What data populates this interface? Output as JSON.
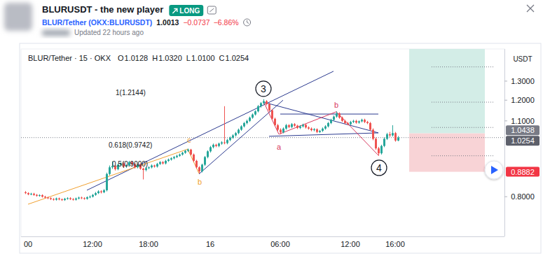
{
  "header": {
    "title": "BLURUSDT - the new player",
    "badge": "LONG",
    "symbol": "BLUR/Tether (OKX:BLURUSDT)",
    "price": "1.0013",
    "change": "−0.0737",
    "change_pct": "−6.86%",
    "updated": "Updated 22 hours ago"
  },
  "chart_data": {
    "type": "candlestick",
    "title": "BLUR/Tether · 15 · OKX",
    "ohlc": [
      {
        "label": "O",
        "value": "1.0128"
      },
      {
        "label": "H",
        "value": "1.0320"
      },
      {
        "label": "L",
        "value": "1.0100"
      },
      {
        "label": "C",
        "value": "1.0254"
      }
    ],
    "y_label": "USDT",
    "categories": [
      null,
      "00",
      null,
      null,
      null,
      null,
      null,
      null,
      null,
      null,
      null,
      null,
      null,
      null,
      null,
      null,
      null,
      null,
      null,
      null,
      null,
      null,
      null,
      null,
      "12:00",
      null,
      null,
      null,
      null,
      null,
      null,
      null,
      null,
      null,
      null,
      null,
      null,
      null,
      null,
      null,
      null,
      null,
      null,
      null,
      "18:00",
      null,
      null,
      null,
      null,
      null,
      null,
      null,
      null,
      null,
      null,
      null,
      null,
      null,
      null,
      null,
      null,
      null,
      null,
      null,
      null,
      null,
      "16",
      null,
      null,
      null,
      null,
      null,
      null,
      null,
      null,
      null,
      null,
      null,
      null,
      null,
      null,
      null,
      null,
      null,
      null,
      null,
      null,
      null,
      null,
      null,
      null,
      "06:00",
      null,
      null,
      null,
      null,
      null,
      null,
      null,
      null,
      null,
      null,
      null,
      null,
      null,
      null,
      null,
      null,
      null,
      null,
      null,
      null,
      null,
      null,
      null,
      null,
      "12:00",
      null,
      null,
      null,
      null,
      null,
      null,
      null,
      null,
      null,
      null,
      null,
      null,
      null,
      null,
      null,
      "16:00",
      null
    ],
    "series": [
      {
        "colors": [
          "#26a69a",
          "#ef5350"
        ],
        "open": [
          0.815,
          0.812,
          0.808,
          0.81,
          0.806,
          0.803,
          0.805,
          0.8,
          0.797,
          0.795,
          0.792,
          0.79,
          0.794,
          0.791,
          0.789,
          0.793,
          0.795,
          0.792,
          0.79,
          0.794,
          0.797,
          0.795,
          0.793,
          0.798,
          0.8,
          0.806,
          0.812,
          0.818,
          0.815,
          0.822,
          0.88,
          0.905,
          0.91,
          0.898,
          0.915,
          0.92,
          0.908,
          0.912,
          0.925,
          0.918,
          0.905,
          0.915,
          0.9,
          0.895,
          0.902,
          0.905,
          0.912,
          0.908,
          0.918,
          0.925,
          0.92,
          0.93,
          0.935,
          0.94,
          0.945,
          0.95,
          0.955,
          0.962,
          0.97,
          0.975,
          0.955,
          0.93,
          0.905,
          0.89,
          0.915,
          0.945,
          0.968,
          0.985,
          0.995,
          0.99,
          1.0,
          1.005,
          1.002,
          1.015,
          1.025,
          1.035,
          1.045,
          1.06,
          1.075,
          1.09,
          1.1,
          1.115,
          1.13,
          1.145,
          1.17,
          1.185,
          1.195,
          1.18,
          1.15,
          1.11,
          1.08,
          1.06,
          1.048,
          1.065,
          1.08,
          1.072,
          1.085,
          1.078,
          1.068,
          1.075,
          1.082,
          1.07,
          1.065,
          1.058,
          1.062,
          1.05,
          1.055,
          1.065,
          1.075,
          1.09,
          1.105,
          1.12,
          1.135,
          1.115,
          1.1,
          1.09,
          1.085,
          1.095,
          1.1,
          1.092,
          1.098,
          1.105,
          1.095,
          1.09,
          1.06,
          1.02,
          0.98,
          0.96,
          0.99,
          1.02,
          1.04,
          1.035,
          1.045,
          1.0128
        ],
        "high": [
          0.819,
          0.815,
          0.813,
          0.813,
          0.809,
          0.808,
          0.808,
          0.803,
          0.8,
          0.798,
          0.795,
          0.797,
          0.797,
          0.794,
          0.796,
          0.798,
          0.798,
          0.795,
          0.797,
          0.8,
          0.8,
          0.798,
          0.801,
          0.804,
          0.809,
          0.816,
          0.822,
          0.822,
          0.826,
          0.885,
          0.912,
          0.928,
          0.914,
          0.919,
          0.925,
          0.924,
          0.916,
          0.93,
          0.929,
          0.921,
          0.919,
          0.918,
          0.904,
          0.906,
          0.909,
          0.916,
          0.915,
          0.922,
          0.929,
          0.929,
          0.934,
          0.939,
          0.944,
          0.949,
          0.954,
          0.959,
          0.966,
          0.974,
          0.979,
          0.978,
          0.959,
          0.934,
          0.909,
          0.919,
          0.949,
          0.972,
          0.99,
          1.0,
          0.999,
          1.004,
          1.01,
          1.17,
          1.02,
          1.03,
          1.04,
          1.05,
          1.065,
          1.08,
          1.095,
          1.106,
          1.12,
          1.135,
          1.15,
          1.176,
          1.19,
          1.205,
          1.2,
          1.186,
          1.156,
          1.115,
          1.086,
          1.066,
          1.07,
          1.086,
          1.085,
          1.09,
          1.09,
          1.082,
          1.08,
          1.087,
          1.086,
          1.075,
          1.07,
          1.067,
          1.066,
          1.059,
          1.07,
          1.08,
          1.095,
          1.11,
          1.125,
          1.145,
          1.14,
          1.12,
          1.105,
          1.095,
          1.1,
          1.105,
          1.105,
          1.102,
          1.11,
          1.11,
          1.1,
          1.095,
          1.066,
          1.026,
          0.986,
          0.995,
          1.026,
          1.046,
          1.05,
          1.08,
          1.05,
          1.032
        ],
        "low": [
          0.809,
          0.805,
          0.805,
          0.803,
          0.8,
          0.8,
          0.797,
          0.794,
          0.792,
          0.789,
          0.787,
          0.787,
          0.788,
          0.786,
          0.786,
          0.79,
          0.789,
          0.787,
          0.787,
          0.791,
          0.792,
          0.79,
          0.79,
          0.795,
          0.797,
          0.803,
          0.809,
          0.811,
          0.812,
          0.818,
          0.875,
          0.899,
          0.893,
          0.894,
          0.91,
          0.903,
          0.903,
          0.908,
          0.913,
          0.9,
          0.901,
          0.896,
          0.86,
          0.89,
          0.898,
          0.901,
          0.904,
          0.904,
          0.914,
          0.916,
          0.916,
          0.926,
          0.931,
          0.936,
          0.941,
          0.946,
          0.951,
          0.958,
          0.965,
          0.951,
          0.925,
          0.9,
          0.882,
          0.886,
          0.91,
          0.94,
          0.963,
          0.98,
          0.985,
          0.985,
          0.995,
          0.997,
          0.997,
          1.01,
          1.02,
          1.03,
          1.04,
          1.055,
          1.07,
          1.084,
          1.095,
          1.11,
          1.125,
          1.14,
          1.163,
          1.178,
          1.174,
          1.144,
          1.104,
          1.074,
          1.054,
          1.04,
          1.044,
          1.06,
          1.067,
          1.067,
          1.073,
          1.063,
          1.063,
          1.07,
          1.065,
          1.06,
          1.053,
          1.053,
          1.045,
          1.045,
          1.05,
          1.06,
          1.07,
          1.085,
          1.1,
          1.115,
          1.11,
          1.095,
          1.085,
          1.08,
          1.08,
          1.09,
          1.087,
          1.087,
          1.093,
          1.09,
          1.085,
          1.055,
          1.014,
          0.974,
          0.95,
          0.955,
          0.985,
          1.015,
          1.028,
          1.03,
          1.008,
          1.01
        ],
        "close": [
          0.812,
          0.808,
          0.81,
          0.806,
          0.803,
          0.805,
          0.8,
          0.797,
          0.795,
          0.792,
          0.79,
          0.794,
          0.791,
          0.789,
          0.793,
          0.795,
          0.792,
          0.79,
          0.794,
          0.797,
          0.795,
          0.793,
          0.798,
          0.8,
          0.806,
          0.812,
          0.818,
          0.815,
          0.822,
          0.88,
          0.905,
          0.91,
          0.898,
          0.915,
          0.92,
          0.908,
          0.912,
          0.925,
          0.918,
          0.905,
          0.915,
          0.9,
          0.895,
          0.902,
          0.905,
          0.912,
          0.908,
          0.918,
          0.925,
          0.92,
          0.93,
          0.935,
          0.94,
          0.945,
          0.95,
          0.955,
          0.962,
          0.97,
          0.975,
          0.955,
          0.93,
          0.905,
          0.89,
          0.915,
          0.945,
          0.968,
          0.985,
          0.995,
          0.99,
          1.0,
          1.005,
          1.002,
          1.015,
          1.025,
          1.035,
          1.045,
          1.06,
          1.075,
          1.09,
          1.1,
          1.115,
          1.13,
          1.145,
          1.17,
          1.185,
          1.195,
          1.18,
          1.15,
          1.11,
          1.08,
          1.06,
          1.048,
          1.065,
          1.08,
          1.072,
          1.085,
          1.078,
          1.068,
          1.075,
          1.082,
          1.07,
          1.065,
          1.058,
          1.062,
          1.05,
          1.055,
          1.065,
          1.075,
          1.09,
          1.105,
          1.12,
          1.135,
          1.115,
          1.1,
          1.09,
          1.085,
          1.095,
          1.1,
          1.092,
          1.098,
          1.105,
          1.095,
          1.09,
          1.06,
          1.02,
          0.98,
          0.96,
          0.99,
          1.02,
          1.04,
          1.035,
          1.045,
          1.0128,
          1.0254
        ]
      }
    ],
    "xlim": [
      -1.5,
      171
    ],
    "ylim": [
      0.677,
      1.488
    ],
    "yticks": [
      {
        "value": 0.8,
        "label": "0.8000"
      },
      {
        "value": 1.1,
        "label": "1.1000"
      },
      {
        "value": 1.2,
        "label": "1.2000"
      },
      {
        "value": 1.3,
        "label": "1.3000"
      }
    ],
    "log": "y",
    "grid": false,
    "last": {
      "value": 1.0254,
      "label": "1.0254"
    },
    "position": {
      "entry": {
        "value": 1.0438,
        "label": "1.0438"
      },
      "stop": {
        "value": 0.8882,
        "label": "0.8882"
      },
      "target": 1.5,
      "x": [
        137,
        164
      ],
      "levels": [
        1.38,
        1.19,
        1.07,
        0.95
      ],
      "levels_x": [
        145,
        167
      ]
    },
    "fib_levels": [
      {
        "value": 1.2144,
        "label": "1(1.2144)",
        "x": 32.25
      },
      {
        "value": 0.9742,
        "label": "0.618(0.9742)",
        "x": 29.75
      },
      {
        "value": 0.9,
        "label": "0.5(0.9000)",
        "x": 31
      }
    ],
    "waves": [
      {
        "text": "3",
        "x": 85,
        "value": 1.259,
        "color": "#131722"
      },
      {
        "text": "4",
        "x": 126.25,
        "value": 0.903,
        "color": "#131722"
      },
      {
        "text": "a",
        "x": 90.5,
        "value": 0.986,
        "color": "#d7385e"
      },
      {
        "text": "b",
        "x": 111,
        "value": 1.176,
        "color": "#d7385e"
      },
      {
        "text": "c",
        "x": 58.5,
        "value": 1.015,
        "color": "#f0a030"
      },
      {
        "text": "b",
        "x": 62.25,
        "value": 0.851,
        "color": "#f0a030"
      }
    ],
    "drawings": [
      {
        "points": [
          [
            22,
            0.822
          ],
          [
            110,
            1.355
          ]
        ],
        "color": "#2b3a8f"
      },
      {
        "points": [
          [
            62,
            0.88
          ],
          [
            92,
            1.2
          ]
        ],
        "color": "#2b3a8f"
      },
      {
        "points": [
          [
            85,
            1.19
          ],
          [
            126,
            1.046
          ]
        ],
        "color": "#2b3a8f"
      },
      {
        "points": [
          [
            91,
            1.132
          ],
          [
            126,
            1.132
          ]
        ],
        "color": "#2b3a8f"
      },
      {
        "points": [
          [
            87,
            1.031
          ],
          [
            126,
            1.046
          ]
        ],
        "color": "#2b3a8f"
      },
      {
        "points": [
          [
            85,
            1.194
          ],
          [
            90.5,
            1.04
          ],
          [
            111,
            1.143
          ],
          [
            126,
            0.952
          ]
        ],
        "color": "#d7385e"
      },
      {
        "points": [
          [
            1,
            0.775
          ],
          [
            58,
            0.977
          ],
          [
            62,
            0.882
          ]
        ],
        "color": "#f0a030"
      }
    ]
  }
}
